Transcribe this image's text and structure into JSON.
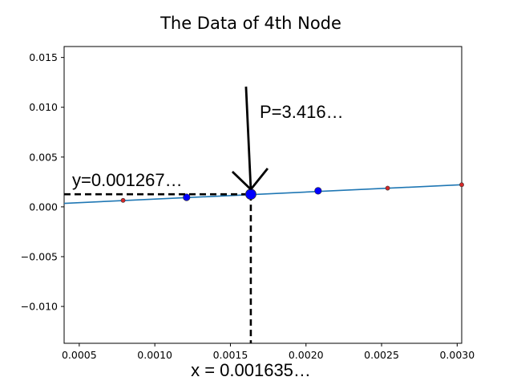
{
  "chart_data": {
    "type": "line",
    "title": "The Data of 4th Node",
    "xlabel": "x = 0.001635…",
    "ylabel": "",
    "xlim": [
      0.0004,
      0.00303
    ],
    "ylim": [
      -0.0137,
      0.0161
    ],
    "x_ticks": [
      0.0005,
      0.001,
      0.0015,
      0.002,
      0.0025,
      0.003
    ],
    "x_tick_labels": [
      "0.0005",
      "0.0010",
      "0.0015",
      "0.0020",
      "0.0025",
      "0.0030"
    ],
    "y_ticks": [
      0.015,
      0.01,
      0.005,
      0.0,
      -0.005,
      -0.01
    ],
    "y_tick_labels": [
      "0.015",
      "0.010",
      "0.005",
      "0.000",
      "−0.005",
      "−0.010"
    ],
    "grid": false,
    "line": {
      "color": "#1f77b4",
      "x": [
        0.0004,
        0.00303
      ],
      "y": [
        0.00035,
        0.00222
      ]
    },
    "series": [
      {
        "color": "#0000ff",
        "marker": "large-dot",
        "x": [
          0.00121,
          0.00163,
          0.00208
        ],
        "y": [
          0.00096,
          0.0013,
          0.00161
        ]
      },
      {
        "color": "#d62728",
        "marker": "small-dot",
        "x": [
          0.00079,
          0.00254,
          0.00303
        ],
        "y": [
          0.00065,
          0.00188,
          0.00222
        ]
      }
    ],
    "highlight_point": {
      "x": 0.001635,
      "y": 0.001267
    },
    "annotations": {
      "y_label": "y=0.001267…",
      "p_label": "P=3.416…"
    }
  }
}
